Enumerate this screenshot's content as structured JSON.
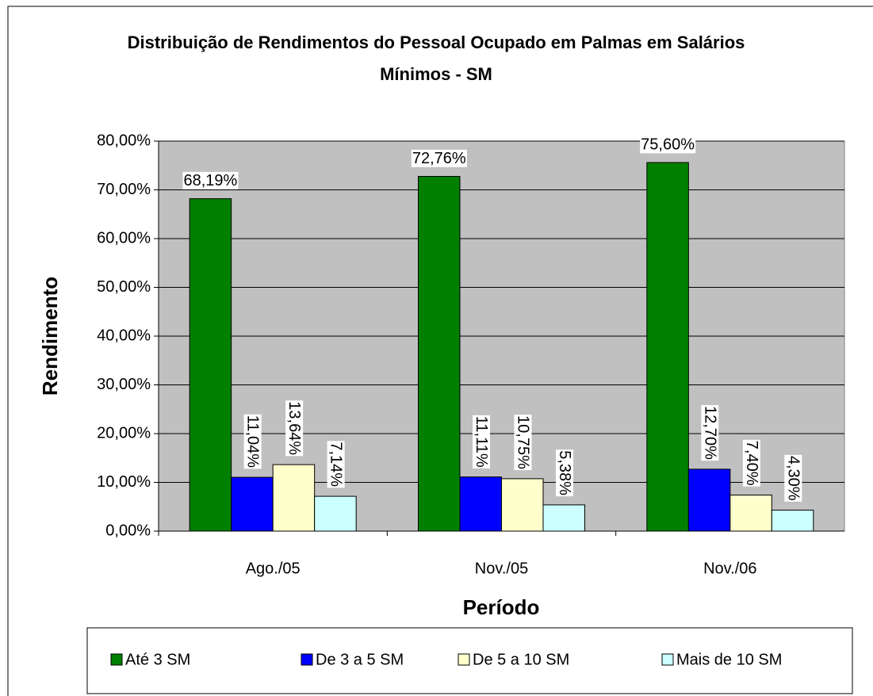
{
  "chart_data": {
    "type": "bar",
    "title": "Distribuição de Rendimentos do Pessoal Ocupado em Palmas em Salários Mínimos - SM",
    "x_label": "Período",
    "y_label": "Rendimento",
    "categories": [
      "Ago./05",
      "Nov./05",
      "Nov./06"
    ],
    "series": [
      {
        "name": "Até 3 SM",
        "color": "#008000",
        "values": [
          68.19,
          72.76,
          75.6
        ],
        "value_labels": [
          "68,19%",
          "72,76%",
          "75,60%"
        ]
      },
      {
        "name": "De 3 a 5 SM",
        "color": "#0000ff",
        "values": [
          11.04,
          11.11,
          12.7
        ],
        "value_labels": [
          "11,04%",
          "11,11%",
          "12,70%"
        ]
      },
      {
        "name": "De 5 a 10 SM",
        "color": "#ffffcc",
        "values": [
          13.64,
          10.75,
          7.4
        ],
        "value_labels": [
          "13,64%",
          "10,75%",
          "7,40%"
        ]
      },
      {
        "name": "Mais de 10 SM",
        "color": "#ccffff",
        "values": [
          7.14,
          5.38,
          4.3
        ],
        "value_labels": [
          "7,14%",
          "5,38%",
          "4,30%"
        ]
      }
    ],
    "ylim": [
      0,
      80
    ],
    "yticks": [
      {
        "value": 0,
        "label": "0,00%"
      },
      {
        "value": 10,
        "label": "10,00%"
      },
      {
        "value": 20,
        "label": "20,00%"
      },
      {
        "value": 30,
        "label": "30,00%"
      },
      {
        "value": 40,
        "label": "40,00%"
      },
      {
        "value": 50,
        "label": "50,00%"
      },
      {
        "value": 60,
        "label": "60,00%"
      },
      {
        "value": 70,
        "label": "70,00%"
      },
      {
        "value": 80,
        "label": "80,00%"
      }
    ],
    "grid": true,
    "legend": "bottom"
  }
}
